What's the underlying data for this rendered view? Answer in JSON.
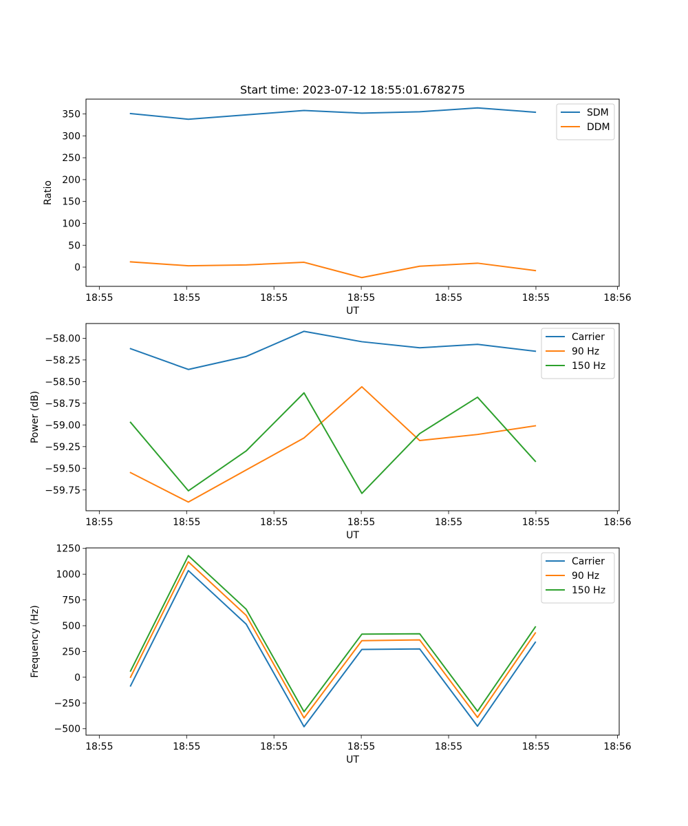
{
  "figure_title": "Start time: 2023-07-12 18:55:01.678275",
  "chart_data": [
    {
      "type": "line",
      "title": "Start time: 2023-07-12 18:55:01.678275",
      "xlabel": "UT",
      "ylabel": "Ratio",
      "x": [
        1,
        2,
        3,
        4,
        5,
        6,
        7,
        8
      ],
      "xlim": [
        0.23,
        9.45
      ],
      "x_ticks": [
        0.46,
        1.97,
        3.48,
        4.99,
        6.5,
        8.01,
        9.42
      ],
      "x_tick_labels": [
        "18:55",
        "18:55",
        "18:55",
        "18:55",
        "18:55",
        "18:55",
        "18:56"
      ],
      "ylim": [
        -44,
        384
      ],
      "y_ticks": [
        0,
        50,
        100,
        150,
        200,
        250,
        300,
        350
      ],
      "y_tick_labels": [
        "0",
        "50",
        "100",
        "150",
        "200",
        "250",
        "300",
        "350"
      ],
      "legend": "top-right",
      "series": [
        {
          "name": "SDM",
          "color": "#1f77b4",
          "values": [
            351,
            338,
            348,
            358,
            352,
            355,
            364,
            354
          ]
        },
        {
          "name": "DDM",
          "color": "#ff7f0e",
          "values": [
            12,
            3,
            5,
            11,
            -24,
            2,
            9,
            -8
          ]
        }
      ]
    },
    {
      "type": "line",
      "title": "",
      "xlabel": "UT",
      "ylabel": "Power (dB)",
      "x": [
        1,
        2,
        3,
        4,
        5,
        6,
        7,
        8
      ],
      "xlim": [
        0.23,
        9.45
      ],
      "x_ticks": [
        0.46,
        1.97,
        3.48,
        4.99,
        6.5,
        8.01,
        9.42
      ],
      "x_tick_labels": [
        "18:55",
        "18:55",
        "18:55",
        "18:55",
        "18:55",
        "18:55",
        "18:56"
      ],
      "ylim": [
        -59.99,
        -57.83
      ],
      "y_ticks": [
        -58.0,
        -58.25,
        -58.5,
        -58.75,
        -59.0,
        -59.25,
        -59.5,
        -59.75
      ],
      "y_tick_labels": [
        "−58.00",
        "−58.25",
        "−58.50",
        "−58.75",
        "−59.00",
        "−59.25",
        "−59.50",
        "−59.75"
      ],
      "legend": "top-right",
      "series": [
        {
          "name": "Carrier",
          "color": "#1f77b4",
          "values": [
            -58.12,
            -58.36,
            -58.21,
            -57.92,
            -58.04,
            -58.11,
            -58.07,
            -58.15
          ]
        },
        {
          "name": "90 Hz",
          "color": "#ff7f0e",
          "values": [
            -59.55,
            -59.89,
            -59.52,
            -59.15,
            -58.56,
            -59.18,
            -59.11,
            -59.01
          ]
        },
        {
          "name": "150 Hz",
          "color": "#2ca02c",
          "values": [
            -58.97,
            -59.76,
            -59.3,
            -58.63,
            -59.79,
            -59.1,
            -58.68,
            -59.42
          ]
        }
      ]
    },
    {
      "type": "line",
      "title": "",
      "xlabel": "UT",
      "ylabel": "Frequency (Hz)",
      "x": [
        1,
        2,
        3,
        4,
        5,
        6,
        7,
        8
      ],
      "xlim": [
        0.23,
        9.45
      ],
      "x_ticks": [
        0.46,
        1.97,
        3.48,
        4.99,
        6.5,
        8.01,
        9.42
      ],
      "x_tick_labels": [
        "18:55",
        "18:55",
        "18:55",
        "18:55",
        "18:55",
        "18:55",
        "18:56"
      ],
      "ylim": [
        -562,
        1255
      ],
      "y_ticks": [
        -500,
        -250,
        0,
        250,
        500,
        750,
        1000,
        1250
      ],
      "y_tick_labels": [
        "−500",
        "−250",
        "0",
        "250",
        "500",
        "750",
        "1000",
        "1250"
      ],
      "legend": "top-right",
      "series": [
        {
          "name": "Carrier",
          "color": "#1f77b4",
          "values": [
            -85,
            1035,
            515,
            -480,
            270,
            275,
            -475,
            340
          ]
        },
        {
          "name": "90 Hz",
          "color": "#ff7f0e",
          "values": [
            0,
            1120,
            600,
            -395,
            355,
            362,
            -390,
            430
          ]
        },
        {
          "name": "150 Hz",
          "color": "#2ca02c",
          "values": [
            60,
            1180,
            660,
            -335,
            418,
            422,
            -330,
            488
          ]
        }
      ]
    }
  ]
}
